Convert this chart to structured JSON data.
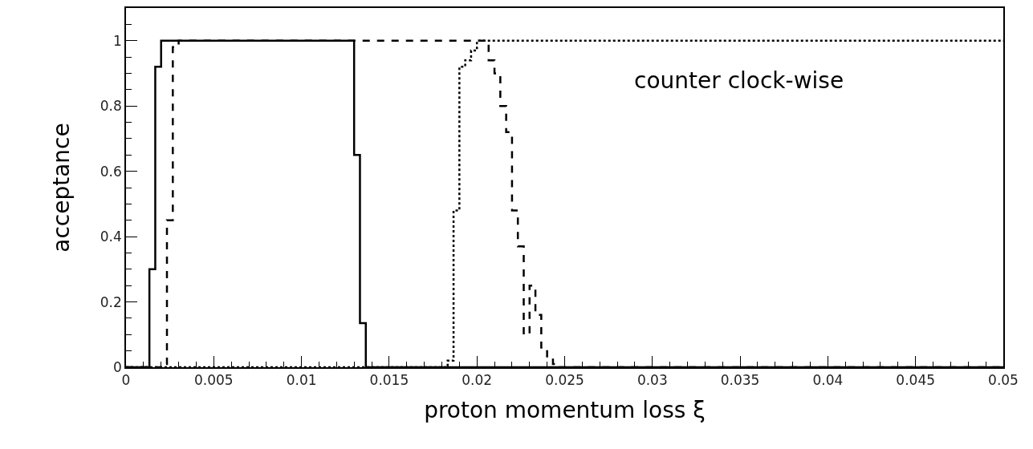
{
  "chart_data": {
    "type": "step",
    "xlabel": "proton momentum loss ξ",
    "ylabel": "acceptance",
    "annotations": [
      "counter clock-wise"
    ],
    "xlim": [
      0,
      0.05
    ],
    "ylim": [
      0,
      1.1
    ],
    "xticks": [
      0,
      0.005,
      0.01,
      0.015,
      0.02,
      0.025,
      0.03,
      0.035,
      0.04,
      0.045,
      0.05
    ],
    "yticks": [
      0,
      0.2,
      0.4,
      0.6,
      0.8,
      1
    ],
    "series": [
      {
        "color": "#000000",
        "line_style": "solid",
        "x": [
          0,
          0.001333,
          0.001667,
          0.002,
          0.013,
          0.013333,
          0.013667,
          0.05
        ],
        "values": [
          0,
          0.3,
          0.92,
          1,
          0.65,
          0.135,
          0,
          0
        ]
      },
      {
        "color": "#000000",
        "line_style": "dashed",
        "x": [
          0,
          0.002,
          0.002333,
          0.002667,
          0.003,
          0.020667,
          0.021,
          0.021333,
          0.021667,
          0.022,
          0.022333,
          0.022667,
          0.023,
          0.023333,
          0.023667,
          0.024,
          0.024333,
          0.024667,
          0.05
        ],
        "values": [
          0,
          0.01,
          0.45,
          0.98,
          1,
          0.94,
          0.9,
          0.8,
          0.72,
          0.48,
          0.37,
          0.1,
          0.25,
          0.16,
          0.06,
          0.03,
          0.01,
          0,
          0
        ]
      },
      {
        "color": "#000000",
        "line_style": "dotted",
        "x": [
          0,
          0.018333,
          0.018667,
          0.019,
          0.019333,
          0.019667,
          0.02,
          0.05
        ],
        "values": [
          0,
          0.02,
          0.48,
          0.92,
          0.94,
          0.97,
          1,
          1
        ]
      }
    ]
  }
}
